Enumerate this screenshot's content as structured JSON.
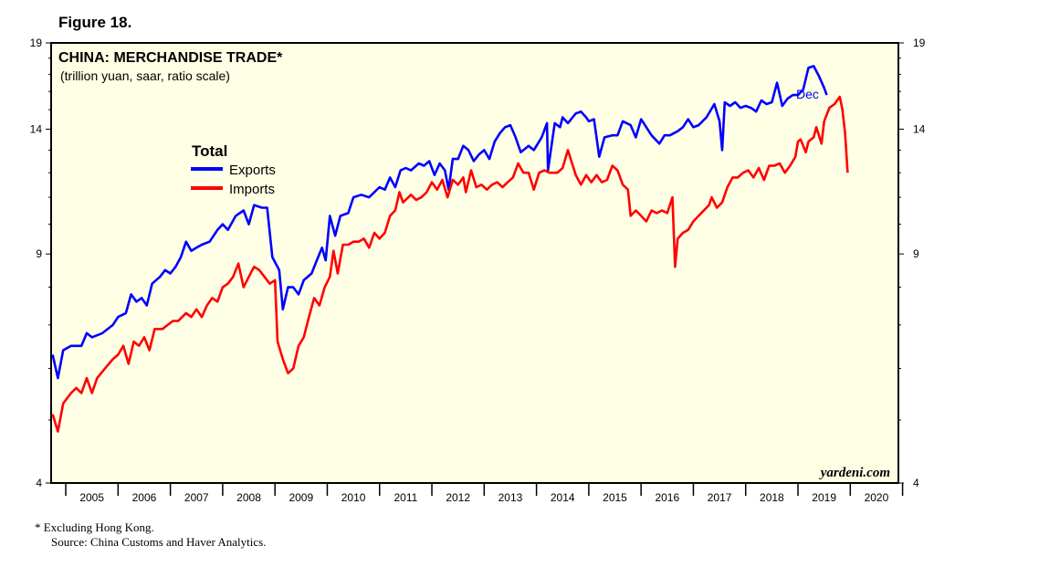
{
  "figure_label": "Figure 18.",
  "footnote": "*   Excluding Hong Kong.",
  "source": "Source: China Customs and Haver Analytics.",
  "colors": {
    "background": "#FFFFE5",
    "exports": "#0000FF",
    "imports": "#FF0000"
  },
  "chart_data": {
    "type": "line",
    "title": "CHINA: MERCHANDISE TRADE*",
    "subtitle": "(trillion yuan, saar, ratio scale)",
    "legend_title": "Total",
    "legend_position": "top-left",
    "brand": "yardeni.com",
    "yscale": "log",
    "ylim": [
      4,
      19
    ],
    "xlim": [
      2004.72,
      2020.92
    ],
    "yticks": [
      "19",
      "14",
      "9",
      "4"
    ],
    "yticks_values": [
      19,
      14,
      9,
      4
    ],
    "xtick_labels": [
      "2005",
      "2006",
      "2007",
      "2008",
      "2009",
      "2010",
      "2011",
      "2012",
      "2013",
      "2014",
      "2015",
      "2016",
      "2017",
      "2018",
      "2019",
      "2020"
    ],
    "last_label": "Dec",
    "series": [
      {
        "name": "Exports",
        "points": [
          [
            2004.75,
            6.3
          ],
          [
            2004.85,
            5.8
          ],
          [
            2004.95,
            6.4
          ],
          [
            2005.1,
            6.5
          ],
          [
            2005.3,
            6.5
          ],
          [
            2005.4,
            6.8
          ],
          [
            2005.5,
            6.7
          ],
          [
            2005.7,
            6.8
          ],
          [
            2005.9,
            7.0
          ],
          [
            2006.0,
            7.2
          ],
          [
            2006.15,
            7.3
          ],
          [
            2006.25,
            7.8
          ],
          [
            2006.35,
            7.6
          ],
          [
            2006.45,
            7.7
          ],
          [
            2006.55,
            7.5
          ],
          [
            2006.65,
            8.1
          ],
          [
            2006.8,
            8.3
          ],
          [
            2006.9,
            8.5
          ],
          [
            2007.0,
            8.4
          ],
          [
            2007.1,
            8.6
          ],
          [
            2007.2,
            8.9
          ],
          [
            2007.3,
            9.4
          ],
          [
            2007.4,
            9.1
          ],
          [
            2007.5,
            9.2
          ],
          [
            2007.6,
            9.3
          ],
          [
            2007.75,
            9.4
          ],
          [
            2007.9,
            9.8
          ],
          [
            2008.0,
            10.0
          ],
          [
            2008.1,
            9.8
          ],
          [
            2008.25,
            10.3
          ],
          [
            2008.4,
            10.5
          ],
          [
            2008.5,
            10.0
          ],
          [
            2008.6,
            10.7
          ],
          [
            2008.75,
            10.6
          ],
          [
            2008.85,
            10.6
          ],
          [
            2008.95,
            8.9
          ],
          [
            2009.08,
            8.5
          ],
          [
            2009.15,
            7.4
          ],
          [
            2009.25,
            8.0
          ],
          [
            2009.35,
            8.0
          ],
          [
            2009.45,
            7.8
          ],
          [
            2009.55,
            8.2
          ],
          [
            2009.7,
            8.4
          ],
          [
            2009.8,
            8.8
          ],
          [
            2009.9,
            9.2
          ],
          [
            2009.97,
            8.8
          ],
          [
            2010.05,
            10.3
          ],
          [
            2010.15,
            9.6
          ],
          [
            2010.25,
            10.3
          ],
          [
            2010.4,
            10.4
          ],
          [
            2010.5,
            11.0
          ],
          [
            2010.65,
            11.1
          ],
          [
            2010.8,
            11.0
          ],
          [
            2010.9,
            11.2
          ],
          [
            2011.0,
            11.4
          ],
          [
            2011.1,
            11.3
          ],
          [
            2011.2,
            11.8
          ],
          [
            2011.3,
            11.4
          ],
          [
            2011.4,
            12.1
          ],
          [
            2011.5,
            12.2
          ],
          [
            2011.6,
            12.1
          ],
          [
            2011.75,
            12.4
          ],
          [
            2011.85,
            12.3
          ],
          [
            2011.95,
            12.5
          ],
          [
            2012.05,
            11.9
          ],
          [
            2012.15,
            12.4
          ],
          [
            2012.25,
            12.1
          ],
          [
            2012.32,
            11.3
          ],
          [
            2012.4,
            12.6
          ],
          [
            2012.5,
            12.6
          ],
          [
            2012.6,
            13.2
          ],
          [
            2012.7,
            13.0
          ],
          [
            2012.8,
            12.5
          ],
          [
            2012.9,
            12.8
          ],
          [
            2013.0,
            13.0
          ],
          [
            2013.1,
            12.6
          ],
          [
            2013.2,
            13.4
          ],
          [
            2013.3,
            13.8
          ],
          [
            2013.4,
            14.1
          ],
          [
            2013.5,
            14.2
          ],
          [
            2013.6,
            13.6
          ],
          [
            2013.7,
            12.9
          ],
          [
            2013.85,
            13.2
          ],
          [
            2013.95,
            13.0
          ],
          [
            2014.1,
            13.6
          ],
          [
            2014.2,
            14.3
          ],
          [
            2014.22,
            12.1
          ],
          [
            2014.35,
            14.3
          ],
          [
            2014.45,
            14.1
          ],
          [
            2014.5,
            14.6
          ],
          [
            2014.6,
            14.3
          ],
          [
            2014.75,
            14.8
          ],
          [
            2014.85,
            14.9
          ],
          [
            2014.95,
            14.6
          ],
          [
            2015.0,
            14.4
          ],
          [
            2015.1,
            14.5
          ],
          [
            2015.2,
            12.7
          ],
          [
            2015.3,
            13.6
          ],
          [
            2015.45,
            13.7
          ],
          [
            2015.55,
            13.7
          ],
          [
            2015.65,
            14.4
          ],
          [
            2015.8,
            14.2
          ],
          [
            2015.9,
            13.6
          ],
          [
            2016.0,
            14.5
          ],
          [
            2016.1,
            14.1
          ],
          [
            2016.2,
            13.7
          ],
          [
            2016.35,
            13.3
          ],
          [
            2016.45,
            13.7
          ],
          [
            2016.55,
            13.7
          ],
          [
            2016.7,
            13.9
          ],
          [
            2016.8,
            14.1
          ],
          [
            2016.9,
            14.5
          ],
          [
            2017.0,
            14.1
          ],
          [
            2017.1,
            14.2
          ],
          [
            2017.25,
            14.6
          ],
          [
            2017.4,
            15.3
          ],
          [
            2017.5,
            14.4
          ],
          [
            2017.55,
            13.0
          ],
          [
            2017.6,
            15.4
          ],
          [
            2017.7,
            15.2
          ],
          [
            2017.8,
            15.4
          ],
          [
            2017.9,
            15.1
          ],
          [
            2018.0,
            15.2
          ],
          [
            2018.1,
            15.1
          ],
          [
            2018.2,
            14.9
          ],
          [
            2018.3,
            15.5
          ],
          [
            2018.4,
            15.3
          ],
          [
            2018.5,
            15.4
          ],
          [
            2018.6,
            16.5
          ],
          [
            2018.7,
            15.2
          ],
          [
            2018.8,
            15.6
          ],
          [
            2018.9,
            15.8
          ],
          [
            2019.0,
            15.8
          ],
          [
            2019.1,
            16.1
          ],
          [
            2019.2,
            17.4
          ],
          [
            2019.3,
            17.5
          ],
          [
            2019.4,
            16.9
          ],
          [
            2019.5,
            16.2
          ],
          [
            2019.55,
            15.8
          ]
        ]
      },
      {
        "name": "Imports",
        "points": [
          [
            2004.75,
            5.1
          ],
          [
            2004.85,
            4.8
          ],
          [
            2004.95,
            5.3
          ],
          [
            2005.1,
            5.5
          ],
          [
            2005.2,
            5.6
          ],
          [
            2005.3,
            5.5
          ],
          [
            2005.4,
            5.8
          ],
          [
            2005.5,
            5.5
          ],
          [
            2005.6,
            5.8
          ],
          [
            2005.75,
            6.0
          ],
          [
            2005.9,
            6.2
          ],
          [
            2006.0,
            6.3
          ],
          [
            2006.1,
            6.5
          ],
          [
            2006.2,
            6.1
          ],
          [
            2006.3,
            6.6
          ],
          [
            2006.4,
            6.5
          ],
          [
            2006.5,
            6.7
          ],
          [
            2006.6,
            6.4
          ],
          [
            2006.7,
            6.9
          ],
          [
            2006.85,
            6.9
          ],
          [
            2006.95,
            7.0
          ],
          [
            2007.05,
            7.1
          ],
          [
            2007.15,
            7.1
          ],
          [
            2007.3,
            7.3
          ],
          [
            2007.4,
            7.2
          ],
          [
            2007.5,
            7.4
          ],
          [
            2007.6,
            7.2
          ],
          [
            2007.7,
            7.5
          ],
          [
            2007.8,
            7.7
          ],
          [
            2007.9,
            7.6
          ],
          [
            2008.0,
            8.0
          ],
          [
            2008.1,
            8.1
          ],
          [
            2008.2,
            8.3
          ],
          [
            2008.3,
            8.7
          ],
          [
            2008.4,
            8.0
          ],
          [
            2008.5,
            8.3
          ],
          [
            2008.6,
            8.6
          ],
          [
            2008.7,
            8.5
          ],
          [
            2008.8,
            8.3
          ],
          [
            2008.9,
            8.1
          ],
          [
            2009.0,
            8.2
          ],
          [
            2009.05,
            6.6
          ],
          [
            2009.15,
            6.2
          ],
          [
            2009.25,
            5.9
          ],
          [
            2009.35,
            6.0
          ],
          [
            2009.45,
            6.5
          ],
          [
            2009.55,
            6.7
          ],
          [
            2009.65,
            7.2
          ],
          [
            2009.75,
            7.7
          ],
          [
            2009.85,
            7.5
          ],
          [
            2009.95,
            8.0
          ],
          [
            2010.05,
            8.3
          ],
          [
            2010.12,
            9.1
          ],
          [
            2010.2,
            8.4
          ],
          [
            2010.3,
            9.3
          ],
          [
            2010.4,
            9.3
          ],
          [
            2010.5,
            9.4
          ],
          [
            2010.6,
            9.4
          ],
          [
            2010.7,
            9.5
          ],
          [
            2010.8,
            9.2
          ],
          [
            2010.9,
            9.7
          ],
          [
            2011.0,
            9.5
          ],
          [
            2011.1,
            9.7
          ],
          [
            2011.2,
            10.3
          ],
          [
            2011.3,
            10.5
          ],
          [
            2011.38,
            11.2
          ],
          [
            2011.45,
            10.8
          ],
          [
            2011.6,
            11.1
          ],
          [
            2011.7,
            10.9
          ],
          [
            2011.8,
            11.0
          ],
          [
            2011.9,
            11.2
          ],
          [
            2012.0,
            11.6
          ],
          [
            2012.1,
            11.3
          ],
          [
            2012.2,
            11.7
          ],
          [
            2012.3,
            11.0
          ],
          [
            2012.4,
            11.7
          ],
          [
            2012.5,
            11.5
          ],
          [
            2012.6,
            11.8
          ],
          [
            2012.65,
            11.2
          ],
          [
            2012.75,
            12.1
          ],
          [
            2012.85,
            11.4
          ],
          [
            2012.95,
            11.5
          ],
          [
            2013.05,
            11.3
          ],
          [
            2013.15,
            11.5
          ],
          [
            2013.25,
            11.6
          ],
          [
            2013.35,
            11.4
          ],
          [
            2013.45,
            11.6
          ],
          [
            2013.55,
            11.8
          ],
          [
            2013.65,
            12.4
          ],
          [
            2013.75,
            12.0
          ],
          [
            2013.85,
            12.0
          ],
          [
            2013.95,
            11.3
          ],
          [
            2014.05,
            12.0
          ],
          [
            2014.15,
            12.1
          ],
          [
            2014.25,
            12.0
          ],
          [
            2014.4,
            12.0
          ],
          [
            2014.5,
            12.2
          ],
          [
            2014.6,
            13.0
          ],
          [
            2014.75,
            11.9
          ],
          [
            2014.85,
            11.5
          ],
          [
            2014.95,
            11.9
          ],
          [
            2015.05,
            11.6
          ],
          [
            2015.15,
            11.9
          ],
          [
            2015.25,
            11.6
          ],
          [
            2015.35,
            11.7
          ],
          [
            2015.45,
            12.3
          ],
          [
            2015.55,
            12.1
          ],
          [
            2015.65,
            11.5
          ],
          [
            2015.75,
            11.3
          ],
          [
            2015.8,
            10.3
          ],
          [
            2015.9,
            10.5
          ],
          [
            2016.0,
            10.3
          ],
          [
            2016.1,
            10.1
          ],
          [
            2016.2,
            10.5
          ],
          [
            2016.3,
            10.4
          ],
          [
            2016.4,
            10.5
          ],
          [
            2016.5,
            10.4
          ],
          [
            2016.6,
            11.0
          ],
          [
            2016.65,
            8.6
          ],
          [
            2016.7,
            9.5
          ],
          [
            2016.8,
            9.7
          ],
          [
            2016.9,
            9.8
          ],
          [
            2017.0,
            10.1
          ],
          [
            2017.1,
            10.3
          ],
          [
            2017.2,
            10.5
          ],
          [
            2017.3,
            10.7
          ],
          [
            2017.35,
            11.0
          ],
          [
            2017.45,
            10.6
          ],
          [
            2017.55,
            10.8
          ],
          [
            2017.65,
            11.4
          ],
          [
            2017.75,
            11.8
          ],
          [
            2017.85,
            11.8
          ],
          [
            2017.95,
            12.0
          ],
          [
            2018.05,
            12.1
          ],
          [
            2018.15,
            11.8
          ],
          [
            2018.25,
            12.2
          ],
          [
            2018.35,
            11.7
          ],
          [
            2018.45,
            12.3
          ],
          [
            2018.55,
            12.3
          ],
          [
            2018.65,
            12.4
          ],
          [
            2018.75,
            12.0
          ],
          [
            2018.85,
            12.3
          ],
          [
            2018.95,
            12.7
          ],
          [
            2019.0,
            13.4
          ],
          [
            2019.05,
            13.5
          ],
          [
            2019.15,
            12.9
          ],
          [
            2019.2,
            13.4
          ],
          [
            2019.3,
            13.6
          ],
          [
            2019.35,
            14.1
          ],
          [
            2019.45,
            13.3
          ],
          [
            2019.5,
            14.4
          ],
          [
            2019.6,
            15.1
          ],
          [
            2019.7,
            15.3
          ],
          [
            2019.8,
            15.7
          ],
          [
            2019.85,
            15.0
          ],
          [
            2019.9,
            13.8
          ],
          [
            2019.95,
            12.0
          ]
        ]
      }
    ]
  }
}
